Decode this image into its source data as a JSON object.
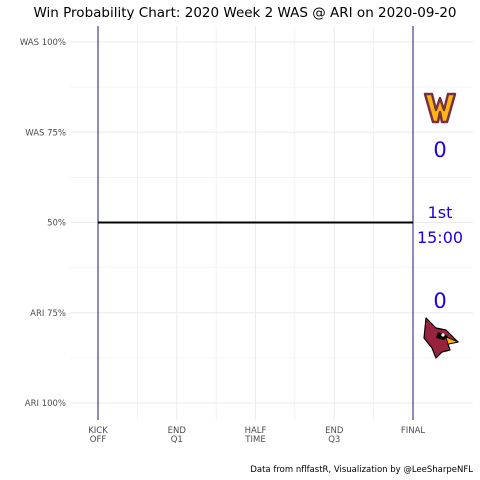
{
  "colors": {
    "accent_text": "#1f00e0",
    "boundary_lines": "#1a1a7a",
    "wp_line": "#000000",
    "gridline": "#ebebeb",
    "was_primary": "#773141",
    "was_secondary": "#FFB612",
    "ari_primary": "#97233F",
    "ari_secondary": "#FFB612"
  },
  "chart_data": {
    "type": "line",
    "title": "Win Probability Chart: 2020 Week 2 WAS @ ARI on 2020-09-20",
    "caption": "Data from nflfastR, Visualization by @LeeSharpeNFL",
    "xlim": [
      0,
      3600
    ],
    "ylim": [
      0,
      1
    ],
    "grid": true,
    "y_ticks": [
      {
        "value": 1.0,
        "label": "WAS 100%"
      },
      {
        "value": 0.75,
        "label": "WAS 75%"
      },
      {
        "value": 0.5,
        "label": "50%"
      },
      {
        "value": 0.25,
        "label": "ARI 75%"
      },
      {
        "value": 0.0,
        "label": "ARI 100%"
      }
    ],
    "x_ticks": [
      {
        "value": 0,
        "label": [
          "KICK",
          "OFF"
        ]
      },
      {
        "value": 900,
        "label": [
          "END",
          "Q1"
        ]
      },
      {
        "value": 1800,
        "label": [
          "HALF",
          "TIME"
        ]
      },
      {
        "value": 2700,
        "label": [
          "END",
          "Q3"
        ]
      },
      {
        "value": 3600,
        "label": [
          "FINAL"
        ]
      }
    ],
    "series": [
      {
        "x": [
          0,
          3600
        ],
        "y": [
          0.5,
          0.5
        ]
      }
    ],
    "annotations": {
      "away_team": "WAS",
      "home_team": "ARI",
      "away_score": "0",
      "home_score": "0",
      "quarter": "1st",
      "clock": "15:00"
    }
  }
}
